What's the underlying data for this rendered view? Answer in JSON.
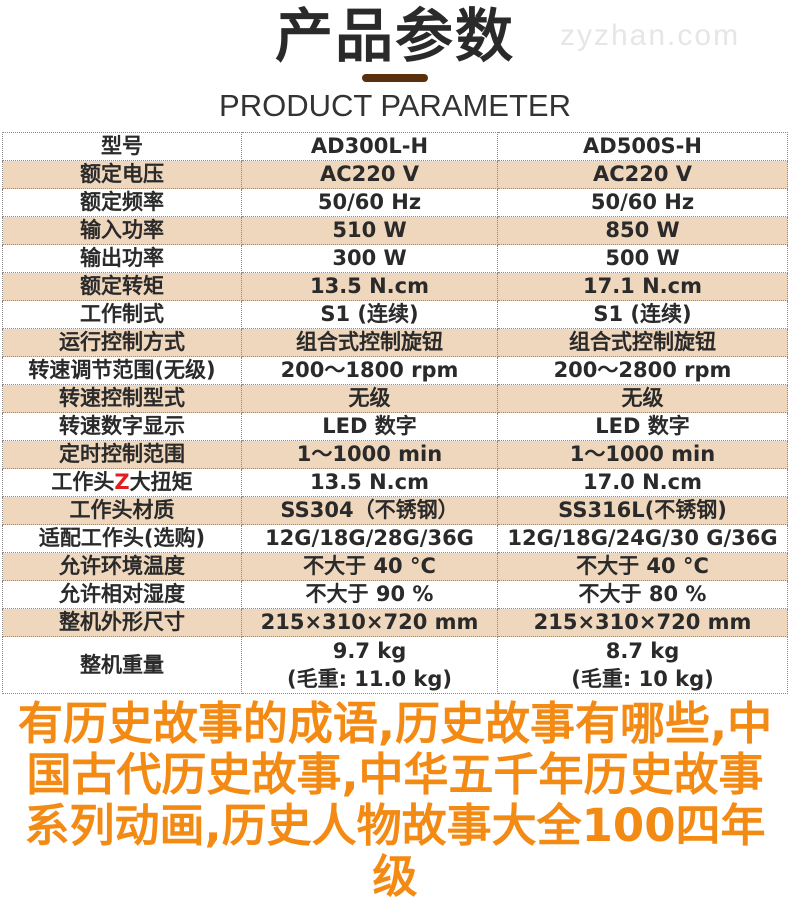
{
  "header": {
    "title": "产品参数",
    "subtitle": "PRODUCT PARAMETER",
    "watermark": "zyzhan.com"
  },
  "table": {
    "columns": [
      "型号",
      "AD300L-H",
      "AD500S-H"
    ],
    "rows": [
      [
        "额定电压",
        "AC220 V",
        "AC220 V"
      ],
      [
        "额定频率",
        "50/60 Hz",
        "50/60 Hz"
      ],
      [
        "输入功率",
        "510 W",
        "850 W"
      ],
      [
        "输出功率",
        "300 W",
        "500 W"
      ],
      [
        "额定转矩",
        "13.5 N.cm",
        "17.1 N.cm"
      ],
      [
        "工作制式",
        "S1 (连续)",
        "S1 (连续)"
      ],
      [
        "运行控制方式",
        "组合式控制旋钮",
        "组合式控制旋钮"
      ],
      [
        "转速调节范围(无级)",
        "200～1800 rpm",
        "200～2800 rpm"
      ],
      [
        "转速控制型式",
        "无级",
        "无级"
      ],
      [
        "转速数字显示",
        "LED 数字",
        "LED 数字"
      ],
      [
        "定时控制范围",
        "1～1000 min",
        "1～1000 min"
      ],
      [
        "工作头Z大扭矩",
        "13.5 N.cm",
        "17.0 N.cm"
      ],
      [
        "工作头材质",
        "SS304（不锈钢）",
        "SS316L(不锈钢)"
      ],
      [
        "适配工作头(选购)",
        "12G/18G/28G/36G",
        "12G/18G/24G/30 G/36G"
      ],
      [
        "允许环境温度",
        "不大于 40 °C",
        "不大于 40 °C"
      ],
      [
        "允许相对湿度",
        "不大于 90 %",
        "不大于 80 %"
      ],
      [
        "整机外形尺寸",
        "215×310×720 mm",
        "215×310×720 mm"
      ]
    ],
    "weight": {
      "label": "整机重量",
      "net": [
        "9.7 kg",
        "8.7 kg"
      ],
      "gross": [
        "(毛重: 11.0 kg)",
        "(毛重: 10 kg)"
      ]
    },
    "highlight_color": "#e02020",
    "alt_row_color": "#efd7bd"
  },
  "overlay": {
    "text": "有历史故事的成语,历史故事有哪些,中国古代历史故事,中华五千年历史故事系列动画,历史人物故事大全100四年级",
    "color": "#f38a14"
  }
}
